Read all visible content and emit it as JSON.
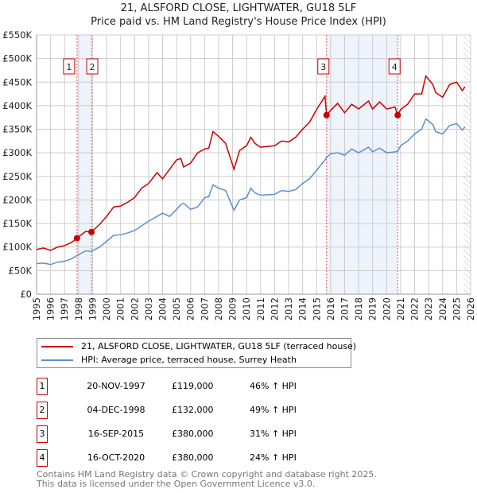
{
  "chart_data": {
    "type": "line",
    "title": "21, ALSFORD CLOSE, LIGHTWATER, GU18 5LF",
    "subtitle": "Price paid vs. HM Land Registry's House Price Index (HPI)",
    "xlim": [
      1995,
      2026
    ],
    "ylim": [
      0,
      550000
    ],
    "x_ticks": [
      "1995",
      "1996",
      "1997",
      "1998",
      "1999",
      "2000",
      "2001",
      "2002",
      "2003",
      "2004",
      "2005",
      "2006",
      "2007",
      "2008",
      "2009",
      "2010",
      "2011",
      "2012",
      "2013",
      "2014",
      "2015",
      "2016",
      "2017",
      "2018",
      "2019",
      "2020",
      "2021",
      "2022",
      "2023",
      "2024",
      "2025",
      "2026"
    ],
    "y_ticks": [
      {
        "v": 0,
        "label": "£0"
      },
      {
        "v": 50000,
        "label": "£50K"
      },
      {
        "v": 100000,
        "label": "£100K"
      },
      {
        "v": 150000,
        "label": "£150K"
      },
      {
        "v": 200000,
        "label": "£200K"
      },
      {
        "v": 250000,
        "label": "£250K"
      },
      {
        "v": 300000,
        "label": "£300K"
      },
      {
        "v": 350000,
        "label": "£350K"
      },
      {
        "v": 400000,
        "label": "£400K"
      },
      {
        "v": 450000,
        "label": "£450K"
      },
      {
        "v": 500000,
        "label": "£500K"
      },
      {
        "v": 550000,
        "label": "£550K"
      }
    ],
    "grid": true,
    "series": [
      {
        "name": "21, ALSFORD CLOSE, LIGHTWATER, GU18 5LF (terraced house)",
        "color": "#cc0000",
        "x": [
          1995,
          1995.5,
          1996,
          1996.5,
          1997,
          1997.5,
          1997.89,
          1998.5,
          1998.92,
          1999.5,
          2000,
          2000.5,
          2001,
          2001.5,
          2002,
          2002.5,
          2003,
          2003.6,
          2004,
          2004.5,
          2005,
          2005.3,
          2005.5,
          2006,
          2006.5,
          2007,
          2007.3,
          2007.6,
          2008,
          2008.5,
          2009.1,
          2009.5,
          2010,
          2010.3,
          2010.6,
          2011,
          2012,
          2012.5,
          2013,
          2013.5,
          2014,
          2014.5,
          2015,
          2015.6,
          2015.71,
          2016,
          2016.5,
          2017,
          2017.5,
          2018,
          2018.7,
          2019,
          2019.5,
          2020,
          2020.6,
          2020.79,
          2021,
          2021.5,
          2022,
          2022.5,
          2022.8,
          2023.3,
          2023.5,
          2024,
          2024.5,
          2025,
          2025.4,
          2025.6
        ],
        "y": [
          95000,
          98000,
          93000,
          100000,
          103000,
          110000,
          119000,
          133000,
          132000,
          148000,
          165000,
          185000,
          187000,
          195000,
          205000,
          225000,
          235000,
          258000,
          245000,
          265000,
          285000,
          288000,
          270000,
          278000,
          300000,
          308000,
          310000,
          345000,
          335000,
          320000,
          265000,
          305000,
          315000,
          333000,
          320000,
          312000,
          315000,
          325000,
          323000,
          333000,
          350000,
          365000,
          392000,
          420000,
          380000,
          390000,
          405000,
          385000,
          403000,
          393000,
          410000,
          393000,
          408000,
          393000,
          397000,
          380000,
          392000,
          403000,
          425000,
          425000,
          463000,
          445000,
          428000,
          418000,
          445000,
          450000,
          432000,
          440000
        ]
      },
      {
        "name": "HPI: Average price, terraced house, Surrey Heath",
        "color": "#5b8fd0",
        "x": [
          1995,
          1995.5,
          1996,
          1996.5,
          1997,
          1997.5,
          1997.89,
          1998.5,
          1998.92,
          1999.5,
          2000,
          2000.5,
          2001,
          2001.5,
          2002,
          2002.5,
          2003,
          2003.6,
          2004,
          2004.5,
          2005,
          2005.3,
          2005.5,
          2006,
          2006.5,
          2007,
          2007.3,
          2007.6,
          2008,
          2008.5,
          2009.1,
          2009.5,
          2010,
          2010.3,
          2010.6,
          2011,
          2012,
          2012.5,
          2013,
          2013.5,
          2014,
          2014.5,
          2015,
          2015.6,
          2015.71,
          2016,
          2016.5,
          2017,
          2017.5,
          2018,
          2018.7,
          2019,
          2019.5,
          2020,
          2020.6,
          2020.79,
          2021,
          2021.5,
          2022,
          2022.5,
          2022.8,
          2023.3,
          2023.5,
          2024,
          2024.5,
          2025,
          2025.4,
          2025.6
        ],
        "y": [
          65000,
          66000,
          63000,
          68000,
          70000,
          75000,
          82000,
          92000,
          91000,
          100000,
          112000,
          125000,
          126000,
          130000,
          135000,
          145000,
          155000,
          165000,
          172000,
          165000,
          180000,
          190000,
          193000,
          180000,
          185000,
          205000,
          207000,
          232000,
          225000,
          220000,
          178000,
          200000,
          205000,
          225000,
          215000,
          210000,
          212000,
          220000,
          218000,
          222000,
          235000,
          245000,
          263000,
          285000,
          290000,
          298000,
          300000,
          295000,
          308000,
          300000,
          312000,
          302000,
          310000,
          300000,
          302000,
          303000,
          315000,
          325000,
          340000,
          350000,
          372000,
          360000,
          345000,
          340000,
          358000,
          362000,
          348000,
          355000
        ]
      }
    ],
    "sales": [
      {
        "n": "1",
        "x": 1997.89,
        "y": 119000
      },
      {
        "n": "2",
        "x": 1998.92,
        "y": 132000
      },
      {
        "n": "3",
        "x": 2015.71,
        "y": 380000
      },
      {
        "n": "4",
        "x": 2020.79,
        "y": 380000
      }
    ],
    "shaded_ranges": [
      [
        1997.89,
        1998.92
      ],
      [
        2015.71,
        2020.79
      ]
    ],
    "forecast_from": 2025.5
  },
  "legend": [
    "21, ALSFORD CLOSE, LIGHTWATER, GU18 5LF (terraced house)",
    "HPI: Average price, terraced house, Surrey Heath"
  ],
  "transactions": [
    {
      "n": "1",
      "date": "20-NOV-1997",
      "price": "£119,000",
      "hpi": "46% ↑ HPI"
    },
    {
      "n": "2",
      "date": "04-DEC-1998",
      "price": "£132,000",
      "hpi": "49% ↑ HPI"
    },
    {
      "n": "3",
      "date": "16-SEP-2015",
      "price": "£380,000",
      "hpi": "31% ↑ HPI"
    },
    {
      "n": "4",
      "date": "16-OCT-2020",
      "price": "£380,000",
      "hpi": "24% ↑ HPI"
    }
  ],
  "footer": [
    "Contains HM Land Registry data © Crown copyright and database right 2025.",
    "This data is licensed under the Open Government Licence v3.0."
  ]
}
